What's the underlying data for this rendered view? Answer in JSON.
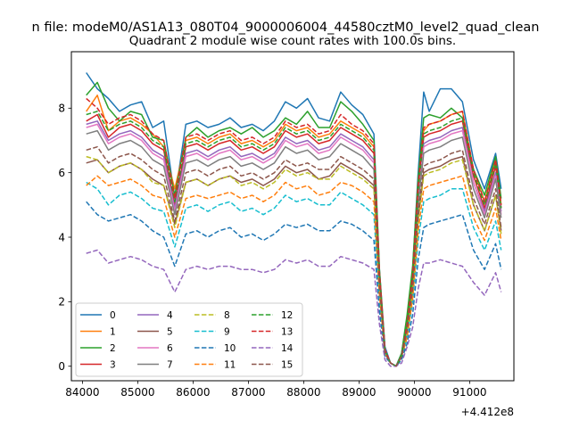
{
  "suptitle": "n file: modeM0/AS1A13_080T04_9000006004_44580cztM0_level2_quad_clean",
  "chart_data": {
    "type": "line",
    "title": "Quadrant 2 module wise count rates with 100.0s bins.",
    "x_offset_label": "+4.412e8",
    "xlim": [
      83800,
      91800
    ],
    "ylim": [
      -0.45,
      9.75
    ],
    "x_ticks": [
      84000,
      85000,
      86000,
      87000,
      88000,
      89000,
      90000,
      91000
    ],
    "y_ticks": [
      0,
      2,
      4,
      6,
      8
    ],
    "grid": false,
    "legend_location": "lower-left",
    "legend_columns": 4,
    "x": [
      84070,
      84270,
      84470,
      84670,
      84870,
      85070,
      85270,
      85470,
      85670,
      85870,
      86070,
      86270,
      86470,
      86670,
      86870,
      87070,
      87270,
      87470,
      87670,
      87870,
      88070,
      88270,
      88470,
      88670,
      88870,
      89070,
      89270,
      89370,
      89470,
      89570,
      89670,
      89770,
      89870,
      89970,
      90070,
      90170,
      90270,
      90470,
      90670,
      90870,
      91070,
      91270,
      91470,
      91570
    ],
    "series": [
      {
        "name": "0",
        "color": "#1f77b4",
        "dash": "solid",
        "values": [
          9.1,
          8.6,
          8.3,
          7.9,
          8.1,
          8.2,
          7.4,
          7.6,
          5.2,
          7.5,
          7.6,
          7.4,
          7.5,
          7.7,
          7.4,
          7.5,
          7.3,
          7.6,
          8.2,
          8.0,
          8.3,
          7.7,
          7.6,
          8.5,
          8.1,
          7.8,
          7.2,
          3.0,
          0.6,
          0.1,
          0.0,
          0.4,
          1.5,
          3.0,
          6.0,
          8.5,
          7.9,
          8.6,
          8.6,
          8.2,
          6.4,
          5.5,
          6.6,
          5.5
        ]
      },
      {
        "name": "1",
        "color": "#ff7f0e",
        "dash": "solid",
        "values": [
          7.9,
          8.4,
          7.3,
          7.6,
          7.7,
          7.5,
          7.2,
          6.8,
          5.5,
          7.0,
          7.1,
          6.9,
          7.1,
          7.2,
          6.9,
          7.0,
          6.8,
          7.0,
          7.5,
          7.3,
          7.4,
          7.1,
          7.2,
          7.6,
          7.4,
          7.2,
          6.8,
          2.9,
          0.5,
          0.1,
          0.0,
          0.3,
          1.3,
          2.8,
          5.5,
          7.3,
          7.5,
          7.6,
          7.8,
          7.9,
          6.1,
          5.1,
          6.4,
          5.0
        ]
      },
      {
        "name": "2",
        "color": "#2ca02c",
        "dash": "solid",
        "values": [
          8.4,
          8.8,
          8.0,
          7.6,
          7.9,
          7.8,
          7.1,
          7.0,
          5.3,
          7.1,
          7.4,
          7.1,
          7.3,
          7.4,
          7.2,
          7.4,
          7.1,
          7.3,
          7.7,
          7.5,
          7.9,
          7.4,
          7.4,
          8.2,
          7.9,
          7.5,
          7.0,
          3.0,
          0.5,
          0.1,
          0.0,
          0.4,
          1.6,
          3.1,
          5.8,
          7.7,
          7.8,
          7.7,
          8.0,
          7.7,
          6.1,
          5.3,
          6.5,
          5.2
        ]
      },
      {
        "name": "3",
        "color": "#d62728",
        "dash": "solid",
        "values": [
          7.6,
          7.8,
          7.1,
          7.4,
          7.5,
          7.3,
          6.9,
          6.7,
          5.0,
          6.8,
          6.9,
          6.7,
          6.9,
          7.0,
          6.7,
          6.8,
          6.6,
          6.8,
          7.3,
          7.1,
          7.2,
          6.9,
          7.0,
          7.4,
          7.2,
          7.0,
          6.6,
          2.8,
          0.5,
          0.1,
          0.0,
          0.3,
          1.2,
          2.7,
          5.4,
          7.1,
          7.2,
          7.3,
          7.5,
          7.6,
          5.9,
          4.9,
          6.2,
          4.9
        ]
      },
      {
        "name": "4",
        "color": "#9467bd",
        "dash": "solid",
        "values": [
          7.5,
          7.6,
          7.0,
          7.2,
          7.3,
          7.1,
          6.7,
          6.5,
          4.9,
          6.6,
          6.7,
          6.5,
          6.7,
          6.8,
          6.5,
          6.6,
          6.4,
          6.6,
          7.1,
          6.9,
          7.0,
          6.7,
          6.8,
          7.2,
          7.0,
          6.8,
          6.4,
          2.7,
          0.5,
          0.1,
          0.0,
          0.3,
          1.2,
          2.6,
          5.2,
          6.9,
          7.0,
          7.1,
          7.3,
          7.4,
          5.7,
          4.8,
          6.0,
          4.8
        ]
      },
      {
        "name": "5",
        "color": "#8c564b",
        "dash": "solid",
        "values": [
          6.3,
          6.4,
          6.0,
          6.2,
          6.3,
          6.1,
          5.8,
          5.6,
          4.4,
          5.7,
          5.8,
          5.6,
          5.8,
          5.9,
          5.7,
          5.8,
          5.6,
          5.8,
          6.2,
          6.0,
          6.1,
          5.8,
          5.9,
          6.3,
          6.1,
          5.9,
          5.6,
          2.4,
          0.4,
          0.1,
          0.0,
          0.3,
          1.0,
          2.3,
          4.6,
          6.0,
          6.1,
          6.2,
          6.4,
          6.5,
          5.0,
          4.2,
          5.3,
          4.2
        ]
      },
      {
        "name": "6",
        "color": "#e377c2",
        "dash": "solid",
        "values": [
          7.4,
          7.5,
          6.9,
          7.1,
          7.2,
          7.0,
          6.6,
          6.4,
          4.8,
          6.5,
          6.6,
          6.4,
          6.6,
          6.7,
          6.4,
          6.5,
          6.3,
          6.5,
          7.0,
          6.8,
          6.9,
          6.6,
          6.7,
          7.1,
          6.9,
          6.7,
          6.3,
          2.7,
          0.5,
          0.1,
          0.0,
          0.3,
          1.2,
          2.6,
          5.1,
          6.8,
          6.9,
          7.0,
          7.2,
          7.3,
          5.7,
          4.7,
          5.9,
          4.7
        ]
      },
      {
        "name": "7",
        "color": "#7f7f7f",
        "dash": "solid",
        "values": [
          7.2,
          7.3,
          6.7,
          6.9,
          7.0,
          6.8,
          6.4,
          6.2,
          4.7,
          6.3,
          6.4,
          6.2,
          6.4,
          6.5,
          6.2,
          6.3,
          6.1,
          6.3,
          6.8,
          6.6,
          6.7,
          6.4,
          6.5,
          6.9,
          6.7,
          6.5,
          6.1,
          2.6,
          0.5,
          0.1,
          0.0,
          0.3,
          1.1,
          2.5,
          5.0,
          6.6,
          6.7,
          6.8,
          7.0,
          7.1,
          5.5,
          4.6,
          5.8,
          4.6
        ]
      },
      {
        "name": "8",
        "color": "#bcbd22",
        "dash": "dashed",
        "values": [
          6.5,
          6.4,
          6.0,
          6.2,
          6.3,
          6.1,
          5.7,
          5.6,
          4.3,
          5.7,
          5.8,
          5.6,
          5.8,
          5.9,
          5.6,
          5.7,
          5.5,
          5.7,
          6.1,
          5.9,
          6.0,
          5.8,
          5.8,
          6.2,
          6.0,
          5.8,
          5.5,
          2.4,
          0.4,
          0.1,
          0.0,
          0.3,
          1.0,
          2.3,
          4.5,
          5.9,
          6.0,
          6.1,
          6.3,
          6.4,
          5.0,
          4.2,
          5.3,
          4.1
        ]
      },
      {
        "name": "9",
        "color": "#17becf",
        "dash": "dashed",
        "values": [
          5.7,
          5.5,
          5.0,
          5.3,
          5.4,
          5.2,
          4.9,
          4.8,
          3.7,
          4.9,
          5.0,
          4.8,
          5.0,
          5.1,
          4.8,
          4.9,
          4.7,
          4.9,
          5.3,
          5.1,
          5.2,
          5.0,
          5.0,
          5.4,
          5.2,
          5.0,
          4.7,
          2.0,
          0.4,
          0.1,
          0.0,
          0.2,
          0.9,
          2.0,
          3.9,
          5.1,
          5.2,
          5.3,
          5.5,
          5.5,
          4.3,
          3.6,
          4.5,
          3.6
        ]
      },
      {
        "name": "10",
        "color": "#1f77b4",
        "dash": "dashed",
        "values": [
          5.1,
          4.7,
          4.5,
          4.6,
          4.7,
          4.5,
          4.2,
          4.0,
          3.1,
          4.1,
          4.2,
          4.0,
          4.2,
          4.3,
          4.0,
          4.1,
          3.9,
          4.1,
          4.4,
          4.3,
          4.4,
          4.2,
          4.2,
          4.5,
          4.4,
          4.2,
          3.9,
          1.7,
          0.3,
          0.1,
          0.0,
          0.2,
          0.7,
          1.6,
          3.3,
          4.3,
          4.4,
          4.5,
          4.6,
          4.7,
          3.6,
          3.0,
          3.8,
          3.0
        ]
      },
      {
        "name": "11",
        "color": "#ff7f0e",
        "dash": "dashed",
        "values": [
          5.6,
          5.9,
          5.6,
          5.7,
          5.8,
          5.6,
          5.3,
          5.2,
          4.0,
          5.2,
          5.3,
          5.2,
          5.3,
          5.4,
          5.2,
          5.3,
          5.1,
          5.3,
          5.7,
          5.5,
          5.6,
          5.3,
          5.4,
          5.7,
          5.6,
          5.4,
          5.1,
          2.2,
          0.4,
          0.1,
          0.0,
          0.3,
          0.9,
          2.1,
          4.2,
          5.5,
          5.6,
          5.7,
          5.8,
          5.9,
          4.6,
          3.9,
          4.9,
          3.9
        ]
      },
      {
        "name": "12",
        "color": "#2ca02c",
        "dash": "dashed",
        "values": [
          7.8,
          7.9,
          7.3,
          7.5,
          7.6,
          7.4,
          7.0,
          6.8,
          5.1,
          6.9,
          7.0,
          6.8,
          7.0,
          7.1,
          6.8,
          6.9,
          6.7,
          6.9,
          7.4,
          7.2,
          7.3,
          7.0,
          7.1,
          7.5,
          7.3,
          7.1,
          6.7,
          2.8,
          0.5,
          0.1,
          0.0,
          0.3,
          1.3,
          2.7,
          5.4,
          7.2,
          7.3,
          7.4,
          7.6,
          7.7,
          6.0,
          5.0,
          6.3,
          4.9
        ]
      },
      {
        "name": "13",
        "color": "#d62728",
        "dash": "dashed",
        "values": [
          8.3,
          8.0,
          7.5,
          7.7,
          7.8,
          7.6,
          7.2,
          7.0,
          5.2,
          7.1,
          7.2,
          7.0,
          7.2,
          7.3,
          7.0,
          7.1,
          6.9,
          7.1,
          7.6,
          7.4,
          7.5,
          7.2,
          7.3,
          7.8,
          7.5,
          7.3,
          6.9,
          2.9,
          0.5,
          0.1,
          0.0,
          0.3,
          1.3,
          2.8,
          5.6,
          7.4,
          7.5,
          7.6,
          7.8,
          7.9,
          6.1,
          5.1,
          6.4,
          5.0
        ]
      },
      {
        "name": "14",
        "color": "#9467bd",
        "dash": "dashed",
        "values": [
          3.5,
          3.6,
          3.2,
          3.3,
          3.4,
          3.3,
          3.1,
          3.0,
          2.3,
          3.0,
          3.1,
          3.0,
          3.1,
          3.1,
          3.0,
          3.0,
          2.9,
          3.0,
          3.3,
          3.2,
          3.3,
          3.1,
          3.1,
          3.4,
          3.3,
          3.2,
          3.0,
          1.3,
          0.2,
          0.0,
          0.0,
          0.1,
          0.6,
          1.2,
          2.4,
          3.2,
          3.2,
          3.3,
          3.2,
          3.1,
          2.6,
          2.2,
          2.9,
          2.3
        ]
      },
      {
        "name": "15",
        "color": "#8c564b",
        "dash": "dashed",
        "values": [
          6.7,
          6.8,
          6.3,
          6.5,
          6.6,
          6.4,
          6.1,
          5.9,
          4.5,
          6.0,
          6.1,
          5.9,
          6.1,
          6.2,
          5.9,
          6.0,
          5.8,
          6.0,
          6.4,
          6.2,
          6.3,
          6.1,
          6.1,
          6.5,
          6.3,
          6.1,
          5.8,
          2.5,
          0.4,
          0.1,
          0.0,
          0.3,
          1.1,
          2.4,
          4.7,
          6.2,
          6.3,
          6.4,
          6.6,
          6.7,
          5.2,
          4.4,
          5.5,
          4.3
        ]
      }
    ]
  }
}
